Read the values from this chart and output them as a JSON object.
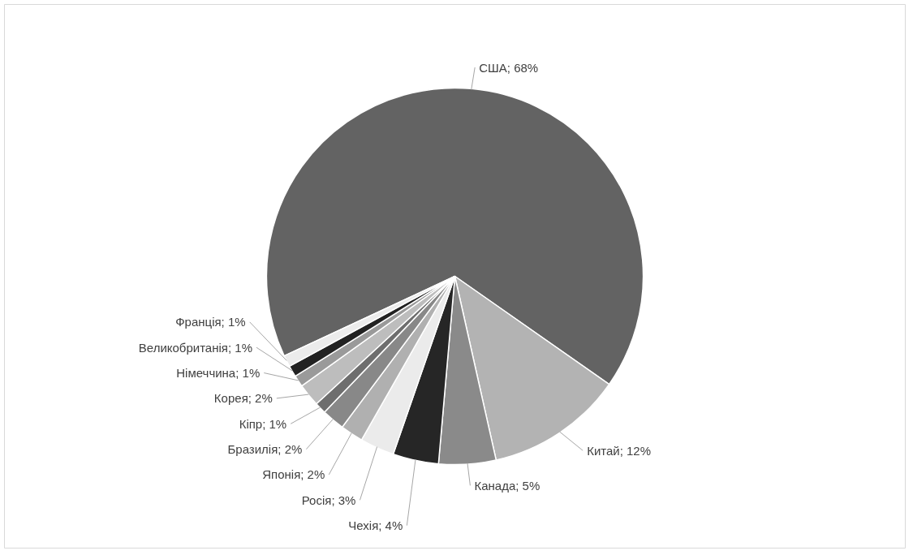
{
  "chart_data": {
    "type": "pie",
    "categories": [
      "США",
      "Китай",
      "Канада",
      "Чехія",
      "Росія",
      "Японія",
      "Бразилія",
      "Кіпр",
      "Корея",
      "Німеччина",
      "Великобританія",
      "Франція"
    ],
    "values": [
      68,
      12,
      5,
      4,
      3,
      2,
      2,
      1,
      2,
      1,
      1,
      1
    ],
    "colors": [
      "#636363",
      "#b3b3b3",
      "#8a8a8a",
      "#262626",
      "#ebebeb",
      "#b0b0b0",
      "#888888",
      "#6e6e6e",
      "#bdbdbd",
      "#9a9a9a",
      "#222222",
      "#ececec"
    ],
    "value_labels": [
      "68%",
      "12%",
      "5%",
      "4%",
      "3%",
      "2%",
      "2%",
      "1%",
      "2%",
      "1%",
      "1%",
      "1%"
    ]
  }
}
